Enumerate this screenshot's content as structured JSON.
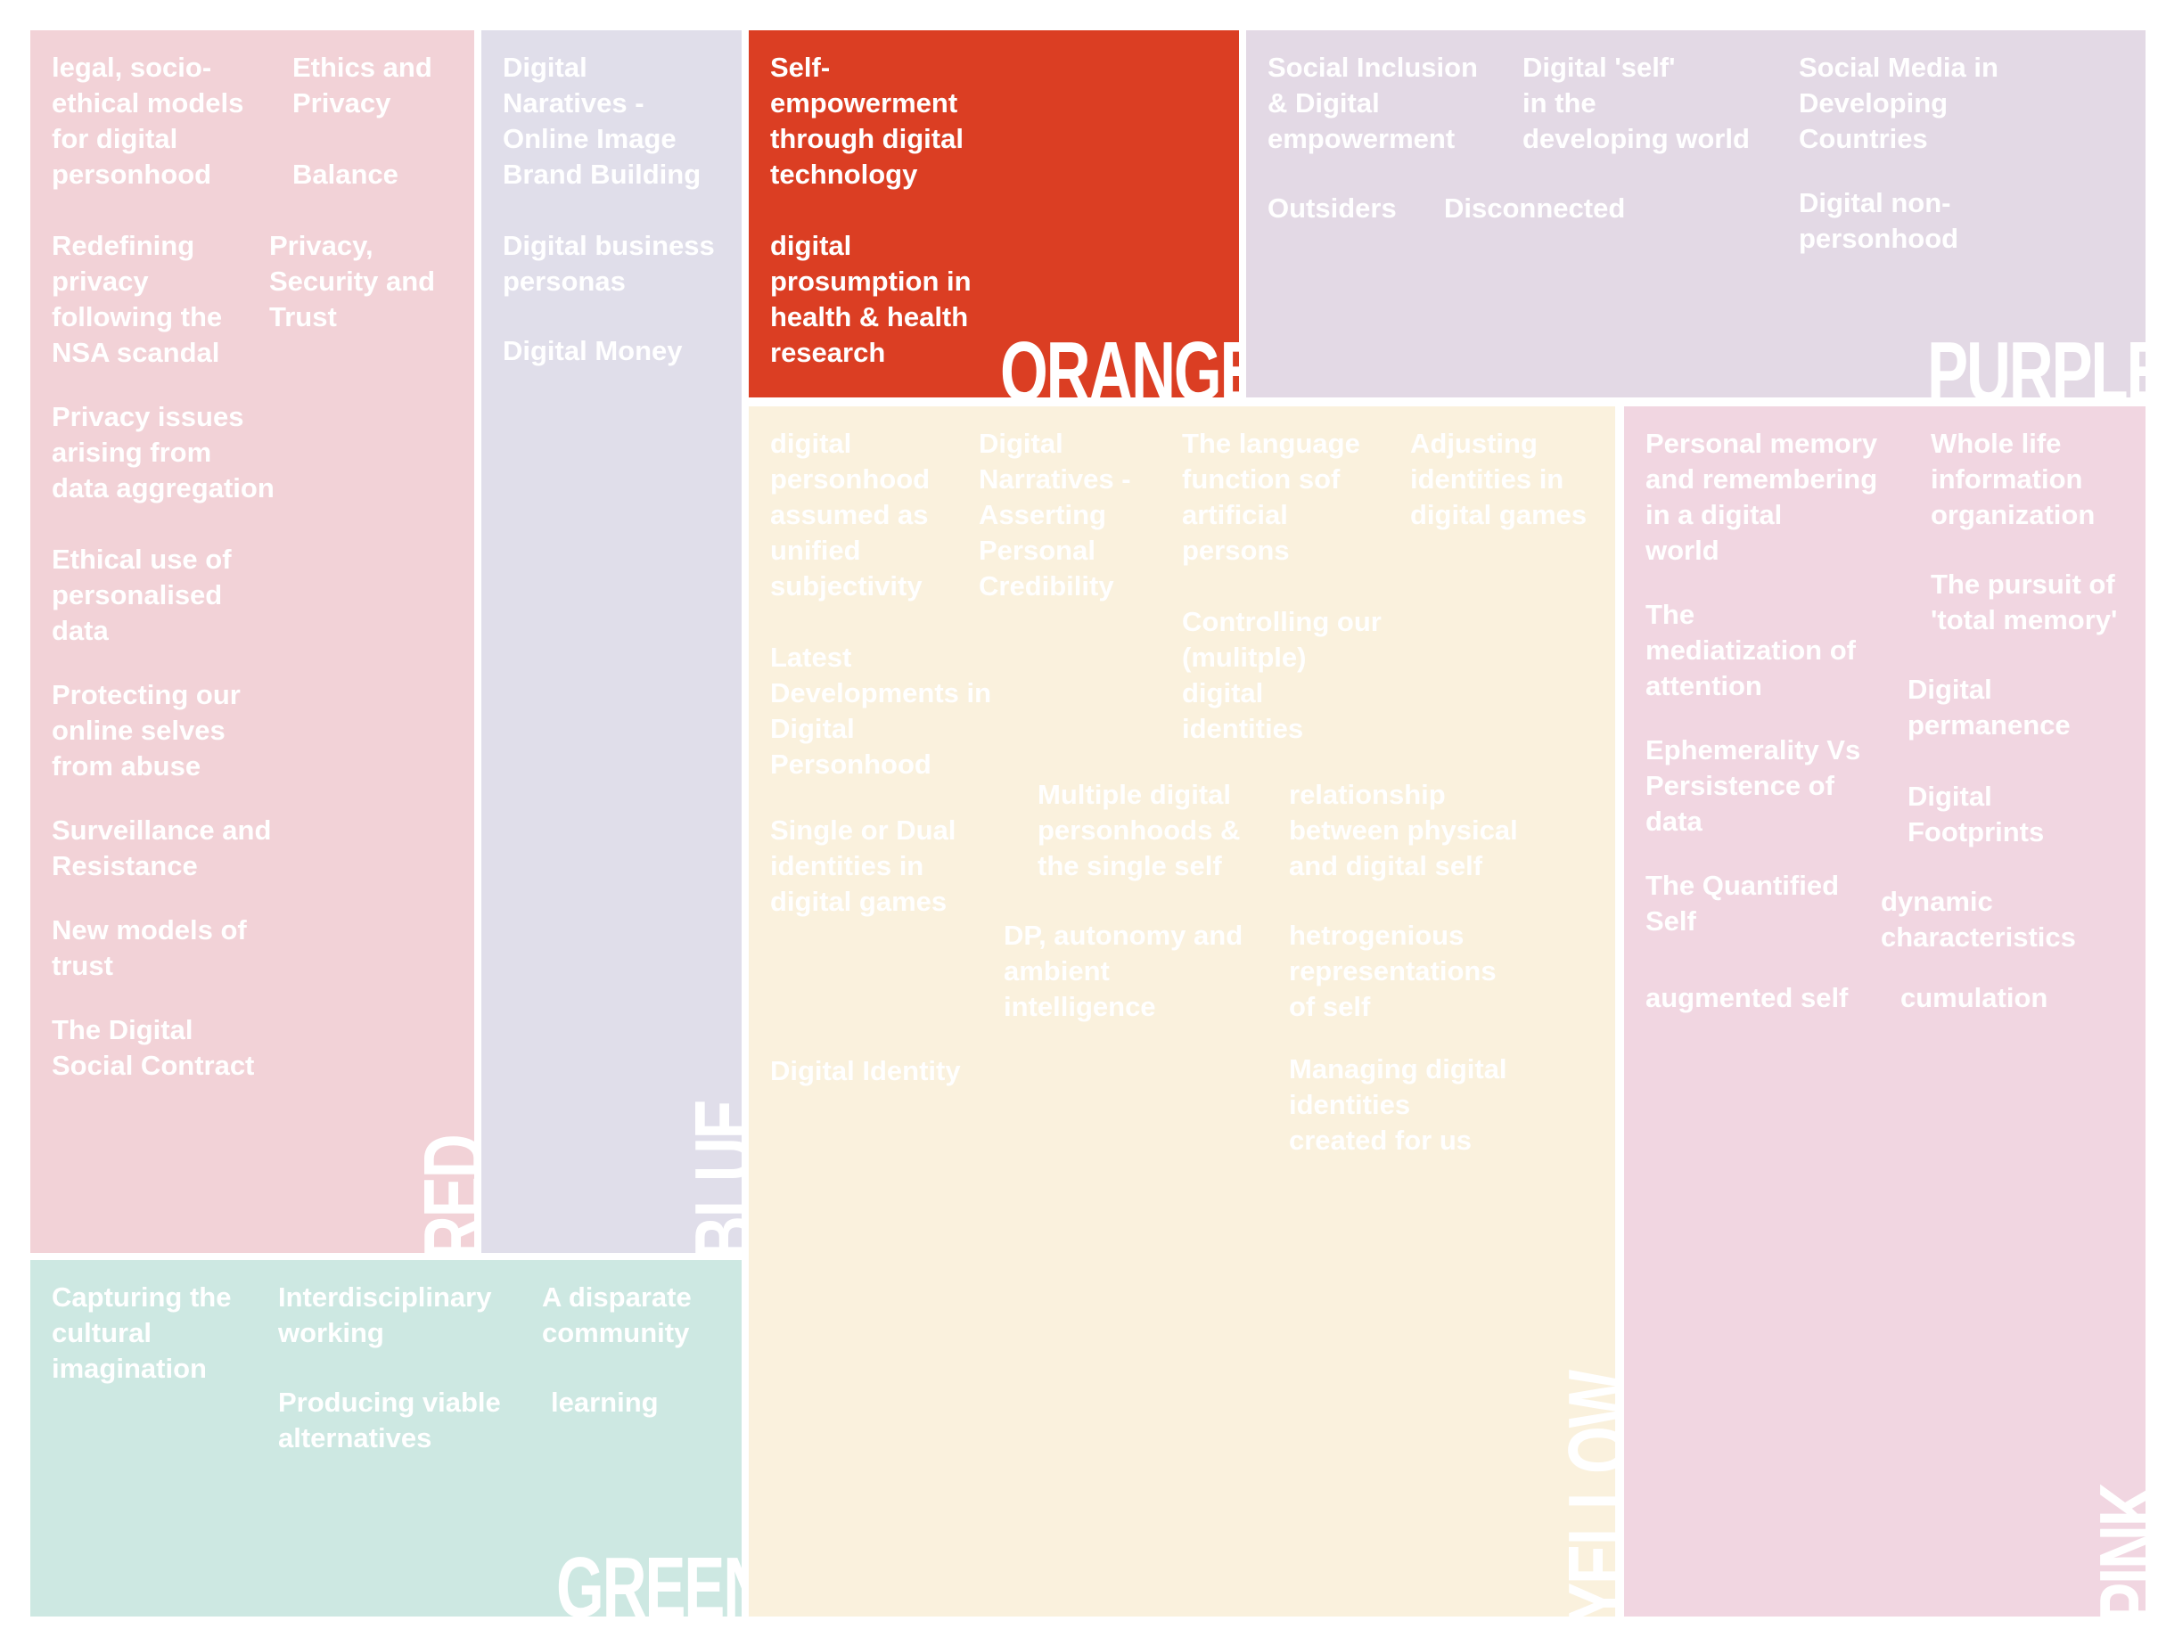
{
  "colors": {
    "red": "#f2d2d7",
    "blue": "#e0deea",
    "orange": "#db3e23",
    "purple": "#e3d9e5",
    "yellow": "#faf1dd",
    "pink": "#f1d6e1",
    "green": "#cde8e2"
  },
  "red": {
    "label": "RED",
    "items": [
      "legal, socio-\nethical models\nfor digital\npersonhood",
      "Ethics and\nPrivacy",
      "Balance",
      "Redefining\nprivacy\nfollowing the\nNSA scandal",
      "Privacy,\nSecurity and\nTrust",
      "Privacy issues\narising from\ndata aggregation",
      "Ethical use of\npersonalised\ndata",
      "Protecting our\nonline selves\nfrom abuse",
      "Surveillance and\nResistance",
      "New models of\ntrust",
      "The Digital\nSocial Contract"
    ]
  },
  "blue": {
    "label": "BLUE",
    "items": [
      "Digital\nNaratives -\nOnline Image\nBrand Building",
      "Digital business\npersonas",
      "Digital Money"
    ]
  },
  "orange": {
    "label": "ORANGE",
    "items": [
      "Self-\nempowerment\nthrough digital\ntechnology",
      "digital\nprosumption in\nhealth & health\nresearch"
    ]
  },
  "purple": {
    "label": "PURPLE",
    "items": [
      "Social Inclusion\n& Digital\nempowerment",
      "Digital 'self'\nin the\ndeveloping world",
      "Social Media in\nDeveloping\nCountries",
      "Outsiders",
      "Disconnected",
      "Digital non-\npersonhood"
    ]
  },
  "yellow": {
    "label": "YELLOW",
    "items": [
      "digital\npersonhood\nassumed as\nunified\nsubjectivity",
      "Digital\nNarratives -\nAsserting\nPersonal\nCredibility",
      "The language\nfunction sof\nartificial\npersons",
      "Adjusting\nidentities in\ndigital games",
      "Controlling our\n(mulitple)\ndigital\nidentities",
      "Latest\nDevelopments in\nDigital\nPersonhood",
      "Multiple digital\npersonhoods &\nthe single self",
      "relationship\nbetween physical\nand digital self",
      "Single or Dual\nidentities in\ndigital games",
      "DP, autonomy and\nambient\nintelligence",
      "hetrogenious\nrepresentations\nof self",
      "Digital Identity",
      "Managing digital\nidentities\ncreated for us"
    ]
  },
  "pink": {
    "label": "PINK",
    "items": [
      "Personal memory\nand remembering\nin a digital\nworld",
      "Whole life\ninformation\norganization",
      "The pursuit of\n'total memory'",
      "The\nmediatization of\nattention",
      "Digital\npermanence",
      "Ephemerality Vs\nPersistence of\ndata",
      "Digital\nFootprints",
      "The Quantified\nSelf",
      "dynamic\ncharacteristics",
      "augmented self",
      "cumulation"
    ]
  },
  "green": {
    "label": "GREEN",
    "items": [
      "Capturing the\ncultural\nimagination",
      "Interdisciplinary\nworking",
      "A disparate\ncommunity",
      "Producing viable\nalternatives",
      "learning"
    ]
  }
}
